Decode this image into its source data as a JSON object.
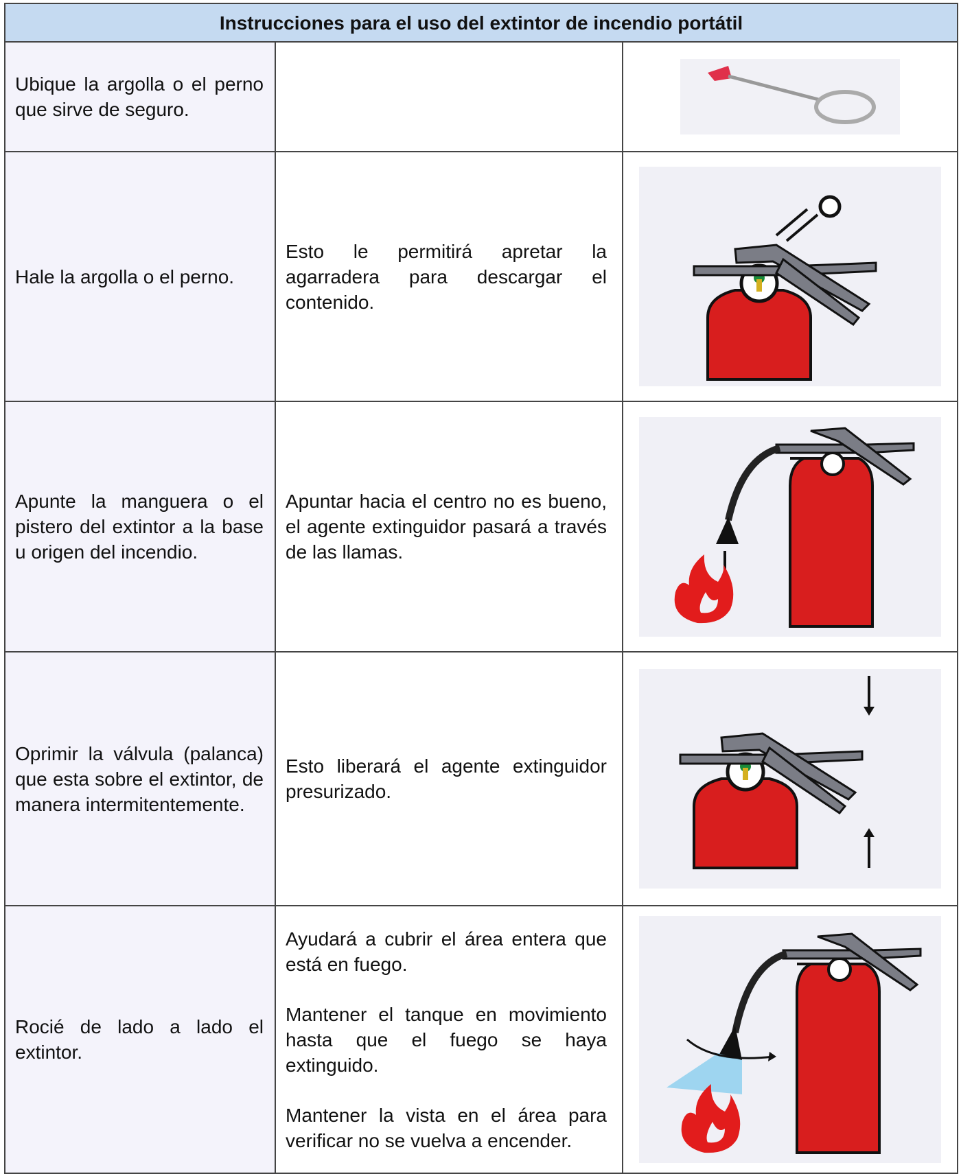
{
  "table": {
    "title": "Instrucciones para el uso del extintor de incendio portátil",
    "rows": [
      {
        "step": "Ubique la argolla o el perno que sirve de seguro.",
        "notes": []
      },
      {
        "step": "Hale la argolla o el perno.",
        "notes": [
          "Esto le permitirá apretar la agarradera para descargar el contenido."
        ]
      },
      {
        "step": "Apunte la manguera o el pistero del extintor a la base u origen del incendio.",
        "notes": [
          "Apuntar hacia el centro no es bueno, el agente extinguidor pasará a través de las llamas."
        ]
      },
      {
        "step": "Oprimir la válvula (palanca) que esta sobre el extintor, de manera intermitentemente.",
        "notes": [
          "Esto liberará el agente extinguidor presurizado."
        ]
      },
      {
        "step": "Rocié de lado a lado el extintor.",
        "notes": [
          "Ayudará a cubrir el área entera que está en fuego.",
          "Mantener el tanque en movimiento hasta que el fuego se haya extinguido.",
          "Mantener la vista en el área para verificar no se vuelva a encender."
        ]
      }
    ]
  }
}
